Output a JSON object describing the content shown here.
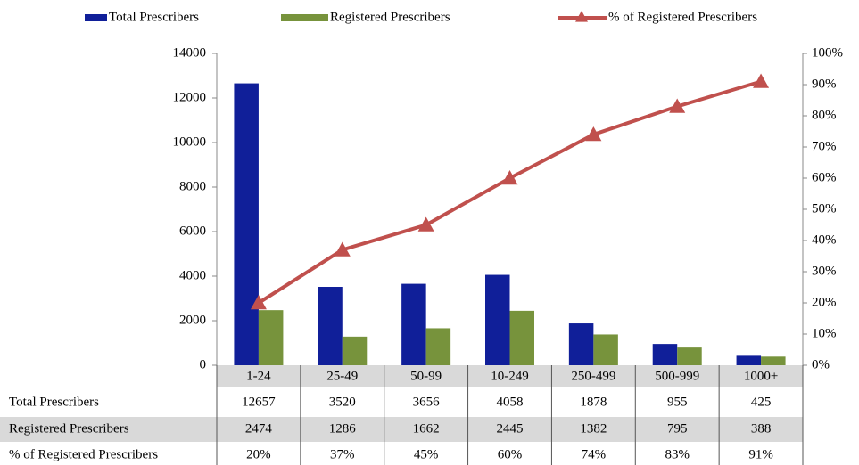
{
  "chart_data": {
    "type": "bar_line_table",
    "categories": [
      "1-24",
      "25-49",
      "50-99",
      "10-249",
      "250-499",
      "500-999",
      "1000+"
    ],
    "series": [
      {
        "name": "Total Prescribers",
        "color": "#101f99",
        "type": "bar",
        "values": [
          12657,
          3520,
          3656,
          4058,
          1878,
          955,
          425
        ]
      },
      {
        "name": "Registered Prescribers",
        "color": "#77933c",
        "type": "bar",
        "values": [
          2474,
          1286,
          1662,
          2445,
          1382,
          795,
          388
        ]
      },
      {
        "name": "% of Registered Prescribers",
        "color": "#c0504d",
        "type": "line",
        "axis": "y2",
        "values": [
          20,
          37,
          45,
          60,
          74,
          83,
          91
        ],
        "value_labels": [
          "20%",
          "37%",
          "45%",
          "60%",
          "74%",
          "83%",
          "91%"
        ]
      }
    ],
    "ylim": [
      0,
      14000
    ],
    "yticks": [
      0,
      2000,
      4000,
      6000,
      8000,
      10000,
      12000,
      14000
    ],
    "y2lim": [
      0,
      100
    ],
    "y2ticks": [
      {
        "value": 0,
        "label": "0%"
      },
      {
        "value": 10,
        "label": "10%"
      },
      {
        "value": 20,
        "label": "20%"
      },
      {
        "value": 30,
        "label": "30%"
      },
      {
        "value": 40,
        "label": "40%"
      },
      {
        "value": 50,
        "label": "50%"
      },
      {
        "value": 60,
        "label": "60%"
      },
      {
        "value": 70,
        "label": "70%"
      },
      {
        "value": 80,
        "label": "80%"
      },
      {
        "value": 90,
        "label": "90%"
      },
      {
        "value": 100,
        "label": "100%"
      }
    ],
    "legend": "top"
  }
}
